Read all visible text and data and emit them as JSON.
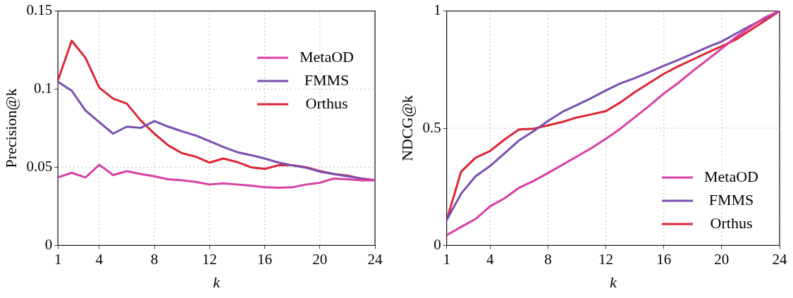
{
  "chart_data": [
    {
      "type": "line",
      "xlabel": "k",
      "ylabel": "Precision@k",
      "x": [
        1,
        2,
        3,
        4,
        5,
        6,
        7,
        8,
        9,
        10,
        11,
        12,
        13,
        14,
        15,
        16,
        17,
        18,
        19,
        20,
        21,
        22,
        23,
        24
      ],
      "xlim": [
        1,
        24
      ],
      "xticks": [
        1,
        4,
        8,
        12,
        16,
        20,
        24
      ],
      "ylim": [
        0,
        0.15
      ],
      "yticks": [
        0,
        0.05,
        0.1,
        0.15
      ],
      "grid": true,
      "legend": "top right",
      "marker": "none",
      "line_style": "solid",
      "series": [
        {
          "name": "MetaOD",
          "color": "#d93fa6",
          "values": [
            0.0435,
            0.0465,
            0.0435,
            0.0516,
            0.045,
            0.0475,
            0.0457,
            0.0442,
            0.0423,
            0.0417,
            0.0406,
            0.039,
            0.0397,
            0.039,
            0.0383,
            0.0372,
            0.0369,
            0.0372,
            0.039,
            0.0401,
            0.0428,
            0.0423,
            0.0417,
            0.0417
          ]
        },
        {
          "name": "FMMS",
          "color": "#7a4fb0",
          "values": [
            0.1047,
            0.099,
            0.0863,
            0.0789,
            0.0715,
            0.076,
            0.0752,
            0.0796,
            0.076,
            0.073,
            0.0703,
            0.0667,
            0.063,
            0.0597,
            0.0578,
            0.0556,
            0.053,
            0.0512,
            0.0497,
            0.0472,
            0.0457,
            0.0442,
            0.0428,
            0.0417
          ]
        },
        {
          "name": "Orthus",
          "color": "#dc2535",
          "values": [
            0.1055,
            0.131,
            0.12,
            0.101,
            0.094,
            0.0907,
            0.08,
            0.0715,
            0.064,
            0.059,
            0.0568,
            0.053,
            0.0556,
            0.0534,
            0.05,
            0.049,
            0.0513,
            0.0513,
            0.05,
            0.0476,
            0.0457,
            0.0447,
            0.0428,
            0.0417
          ]
        }
      ]
    },
    {
      "type": "line",
      "xlabel": "k",
      "ylabel": "NDCG@k",
      "x": [
        1,
        2,
        3,
        4,
        5,
        6,
        7,
        8,
        9,
        10,
        11,
        12,
        13,
        14,
        15,
        16,
        17,
        18,
        19,
        20,
        21,
        22,
        23,
        24
      ],
      "xlim": [
        1,
        24
      ],
      "xticks": [
        1,
        4,
        8,
        12,
        16,
        20,
        24
      ],
      "ylim": [
        0,
        1
      ],
      "yticks": [
        0,
        0.5,
        1
      ],
      "grid": true,
      "legend": "bottom right",
      "marker": "none",
      "line_style": "solid",
      "series": [
        {
          "name": "MetaOD",
          "color": "#d93fa6",
          "values": [
            0.044,
            0.079,
            0.113,
            0.167,
            0.201,
            0.246,
            0.275,
            0.309,
            0.344,
            0.38,
            0.415,
            0.455,
            0.498,
            0.547,
            0.596,
            0.648,
            0.693,
            0.744,
            0.791,
            0.84,
            0.889,
            0.933,
            0.973,
            1
          ]
        },
        {
          "name": "FMMS",
          "color": "#7a4fb0",
          "values": [
            0.108,
            0.221,
            0.295,
            0.339,
            0.393,
            0.448,
            0.487,
            0.531,
            0.57,
            0.599,
            0.629,
            0.661,
            0.691,
            0.714,
            0.739,
            0.766,
            0.791,
            0.818,
            0.845,
            0.87,
            0.904,
            0.938,
            0.968,
            1
          ]
        },
        {
          "name": "Orthus",
          "color": "#dc2535",
          "values": [
            0.108,
            0.315,
            0.374,
            0.403,
            0.452,
            0.495,
            0.498,
            0.512,
            0.527,
            0.546,
            0.559,
            0.573,
            0.61,
            0.654,
            0.693,
            0.732,
            0.764,
            0.793,
            0.822,
            0.85,
            0.879,
            0.919,
            0.959,
            1
          ]
        }
      ]
    }
  ]
}
